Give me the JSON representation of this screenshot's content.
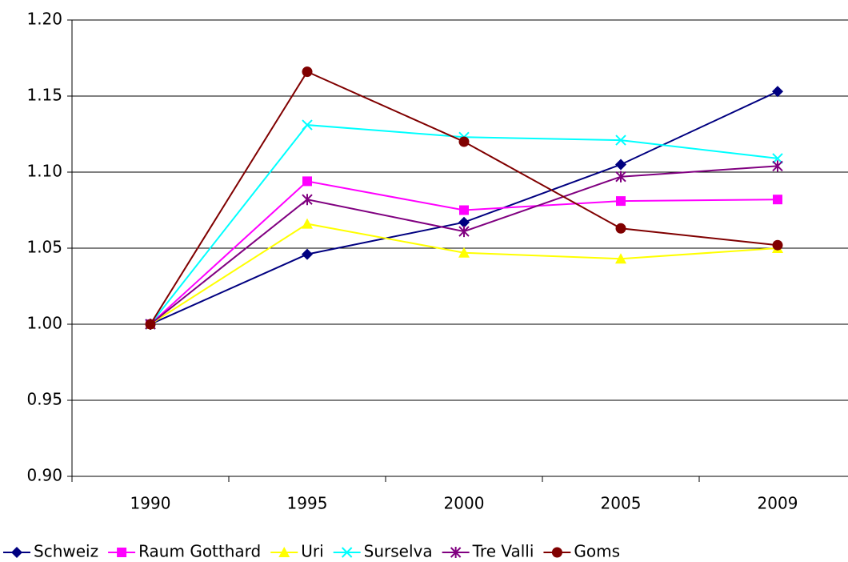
{
  "chart_data": {
    "type": "line",
    "categories": [
      "1990",
      "1995",
      "2000",
      "2005",
      "2009"
    ],
    "series": [
      {
        "name": "Schweiz",
        "color": "#000080",
        "marker": "diamond",
        "values": [
          1.0,
          1.046,
          1.067,
          1.105,
          1.153
        ]
      },
      {
        "name": "Raum Gotthard",
        "color": "#ff00ff",
        "marker": "square",
        "values": [
          1.0,
          1.094,
          1.075,
          1.081,
          1.082
        ]
      },
      {
        "name": "Uri",
        "color": "#ffff00",
        "marker": "triangle",
        "values": [
          1.0,
          1.066,
          1.047,
          1.043,
          1.05
        ]
      },
      {
        "name": "Surselva",
        "color": "#00ffff",
        "marker": "x",
        "values": [
          1.0,
          1.131,
          1.123,
          1.121,
          1.109
        ]
      },
      {
        "name": "Tre Valli",
        "color": "#800080",
        "marker": "star",
        "values": [
          1.0,
          1.082,
          1.061,
          1.097,
          1.104
        ]
      },
      {
        "name": "Goms",
        "color": "#800000",
        "marker": "circle",
        "values": [
          1.0,
          1.166,
          1.12,
          1.063,
          1.052
        ]
      }
    ],
    "ylim": [
      0.9,
      1.2
    ],
    "yticks": [
      {
        "value": 0.9,
        "label": "0.90"
      },
      {
        "value": 0.95,
        "label": "0.95"
      },
      {
        "value": 1.0,
        "label": "1.00"
      },
      {
        "value": 1.05,
        "label": "1.05"
      },
      {
        "value": 1.1,
        "label": "1.10"
      },
      {
        "value": 1.15,
        "label": "1.15"
      },
      {
        "value": 1.2,
        "label": "1.20"
      }
    ],
    "grid": true,
    "legend": "bottom"
  }
}
